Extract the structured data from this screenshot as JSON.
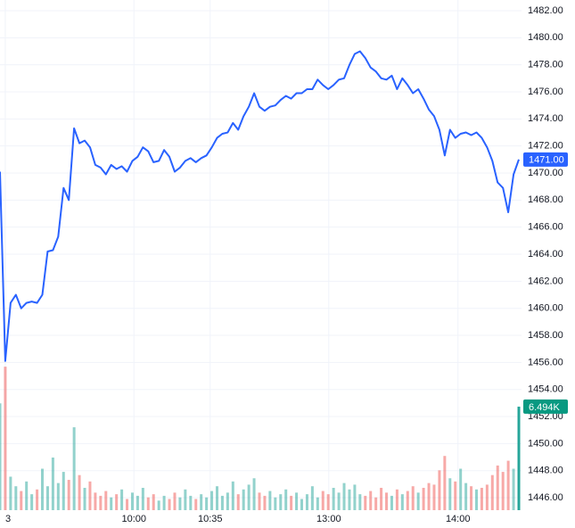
{
  "chart_data": {
    "type": "line",
    "color": "#2962ff",
    "values": [
      1470.1,
      1456.1,
      1460.4,
      1461.0,
      1460.0,
      1460.4,
      1460.5,
      1460.4,
      1461.0,
      1464.2,
      1464.3,
      1465.3,
      1468.9,
      1468.0,
      1473.3,
      1472.2,
      1472.4,
      1471.9,
      1470.6,
      1470.4,
      1469.9,
      1470.6,
      1470.3,
      1470.5,
      1470.1,
      1470.9,
      1471.2,
      1471.9,
      1471.6,
      1470.8,
      1470.9,
      1471.7,
      1471.2,
      1470.1,
      1470.4,
      1470.9,
      1471.1,
      1470.8,
      1471.1,
      1471.3,
      1471.9,
      1472.6,
      1472.9,
      1473.0,
      1473.7,
      1473.2,
      1474.2,
      1474.9,
      1475.9,
      1474.9,
      1474.6,
      1474.9,
      1475.0,
      1475.4,
      1475.7,
      1475.5,
      1475.9,
      1475.9,
      1476.2,
      1476.2,
      1476.9,
      1476.5,
      1476.2,
      1476.5,
      1476.9,
      1477.0,
      1478.0,
      1478.8,
      1479.0,
      1478.5,
      1477.8,
      1477.5,
      1477.0,
      1476.9,
      1477.2,
      1476.2,
      1477.0,
      1476.5,
      1475.9,
      1476.2,
      1475.5,
      1474.7,
      1474.2,
      1473.2,
      1471.3,
      1473.2,
      1472.6,
      1472.9,
      1473.0,
      1472.8,
      1473.0,
      1472.6,
      1471.9,
      1470.9,
      1469.3,
      1468.9,
      1467.1,
      1469.9,
      1471.0
    ],
    "volumes": [
      6700,
      9000,
      2100,
      1500,
      1200,
      1800,
      1000,
      1300,
      2600,
      1500,
      3300,
      1700,
      2400,
      1900,
      5200,
      2200,
      1400,
      1800,
      1100,
      900,
      1200,
      800,
      1000,
      1300,
      700,
      1100,
      900,
      1400,
      800,
      1000,
      600,
      900,
      700,
      1100,
      800,
      1300,
      900,
      700,
      1000,
      800,
      1200,
      1500,
      900,
      1100,
      1800,
      1000,
      1300,
      1600,
      2000,
      1100,
      900,
      1200,
      800,
      1000,
      1300,
      900,
      1100,
      700,
      1000,
      1500,
      800,
      1200,
      1000,
      1400,
      1100,
      1700,
      1300,
      1600,
      1000,
      900,
      1200,
      800,
      1400,
      1100,
      900,
      1300,
      1000,
      1200,
      1500,
      1100,
      1400,
      1700,
      1600,
      2500,
      3400,
      2000,
      1800,
      2600,
      1700,
      1500,
      1300,
      1400,
      1600,
      2200,
      2800,
      2400,
      3100,
      2600,
      6494
    ],
    "up_color": "#26a69a",
    "down_color": "#ef5350",
    "xlim": [
      0,
      98
    ],
    "xticks": [
      {
        "value": 1,
        "label": "3"
      },
      {
        "value": 25.3,
        "label": "10:00"
      },
      {
        "value": 39.7,
        "label": "10:35"
      },
      {
        "value": 62.1,
        "label": "13:00"
      },
      {
        "value": 86.5,
        "label": "14:00"
      }
    ],
    "ylim": [
      1445.08,
      1482.79
    ],
    "yticks": [
      {
        "value": 1446,
        "label": "1446.00"
      },
      {
        "value": 1448,
        "label": "1448.00"
      },
      {
        "value": 1450,
        "label": "1450.00"
      },
      {
        "value": 1452,
        "label": "1452.00"
      },
      {
        "value": 1454,
        "label": "1454.00"
      },
      {
        "value": 1456,
        "label": "1456.00"
      },
      {
        "value": 1458,
        "label": "1458.00"
      },
      {
        "value": 1460,
        "label": "1460.00"
      },
      {
        "value": 1462,
        "label": "1462.00"
      },
      {
        "value": 1464,
        "label": "1464.00"
      },
      {
        "value": 1466,
        "label": "1466.00"
      },
      {
        "value": 1468,
        "label": "1468.00"
      },
      {
        "value": 1470,
        "label": "1470.00"
      },
      {
        "value": 1472,
        "label": "1472.00"
      },
      {
        "value": 1474,
        "label": "1474.00"
      },
      {
        "value": 1476,
        "label": "1476.00"
      },
      {
        "value": 1478,
        "label": "1478.00"
      },
      {
        "value": 1480,
        "label": "1480.00"
      },
      {
        "value": 1482,
        "label": "1482.00"
      }
    ],
    "y2lim": [
      0,
      32000
    ],
    "last_value_label": {
      "value": 1471,
      "label": "1471.00"
    },
    "last_volume_label": {
      "value": 6494,
      "label": "6.494K"
    },
    "grid": true
  }
}
